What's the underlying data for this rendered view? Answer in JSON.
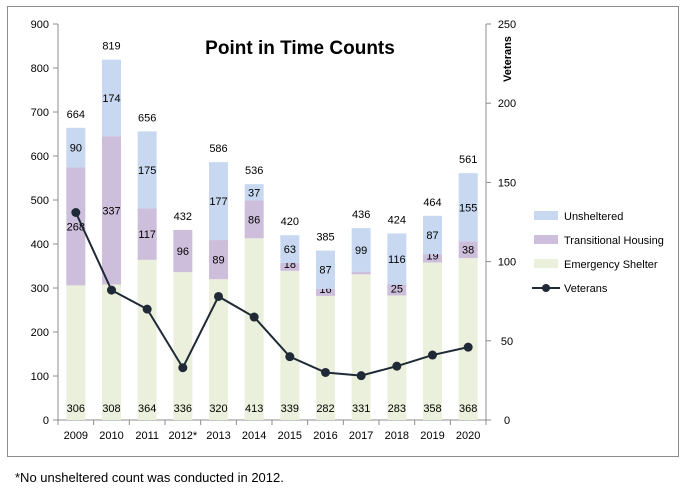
{
  "chart_data": {
    "type": "bar",
    "title": "Point in Time Counts",
    "categories": [
      "2009",
      "2010",
      "2011",
      "2012*",
      "2013",
      "2014",
      "2015",
      "2016",
      "2017",
      "2018",
      "2019",
      "2020"
    ],
    "series": [
      {
        "name": "Emergency Shelter",
        "type": "bar",
        "color": "#ebf0dc",
        "values": [
          306,
          308,
          364,
          336,
          320,
          413,
          339,
          282,
          331,
          283,
          358,
          368
        ]
      },
      {
        "name": "Transitional Housing",
        "type": "bar",
        "color": "#cdbfdc",
        "values": [
          268,
          337,
          117,
          96,
          89,
          86,
          18,
          16,
          6,
          25,
          19,
          38
        ]
      },
      {
        "name": "Unsheltered",
        "type": "bar",
        "color": "#c7d8f0",
        "values": [
          90,
          174,
          175,
          null,
          177,
          37,
          63,
          87,
          99,
          116,
          87,
          155
        ]
      },
      {
        "name": "Veterans",
        "type": "line",
        "axis": "right",
        "color": "#1f2a36",
        "values": [
          131,
          82,
          70,
          33,
          78,
          65,
          40,
          30,
          28,
          34,
          41,
          46
        ]
      }
    ],
    "totals": [
      664,
      819,
      656,
      432,
      586,
      536,
      420,
      385,
      436,
      424,
      464,
      561
    ],
    "ylim": [
      0,
      900
    ],
    "yticks": [
      0,
      100,
      200,
      300,
      400,
      500,
      600,
      700,
      800,
      900
    ],
    "y2label": "Veterans",
    "y2lim": [
      0,
      250
    ],
    "y2ticks": [
      0,
      50,
      100,
      150,
      200,
      250
    ],
    "legend_position": "right",
    "grid": false
  },
  "footnote": "*No unsheltered count was conducted in 2012."
}
